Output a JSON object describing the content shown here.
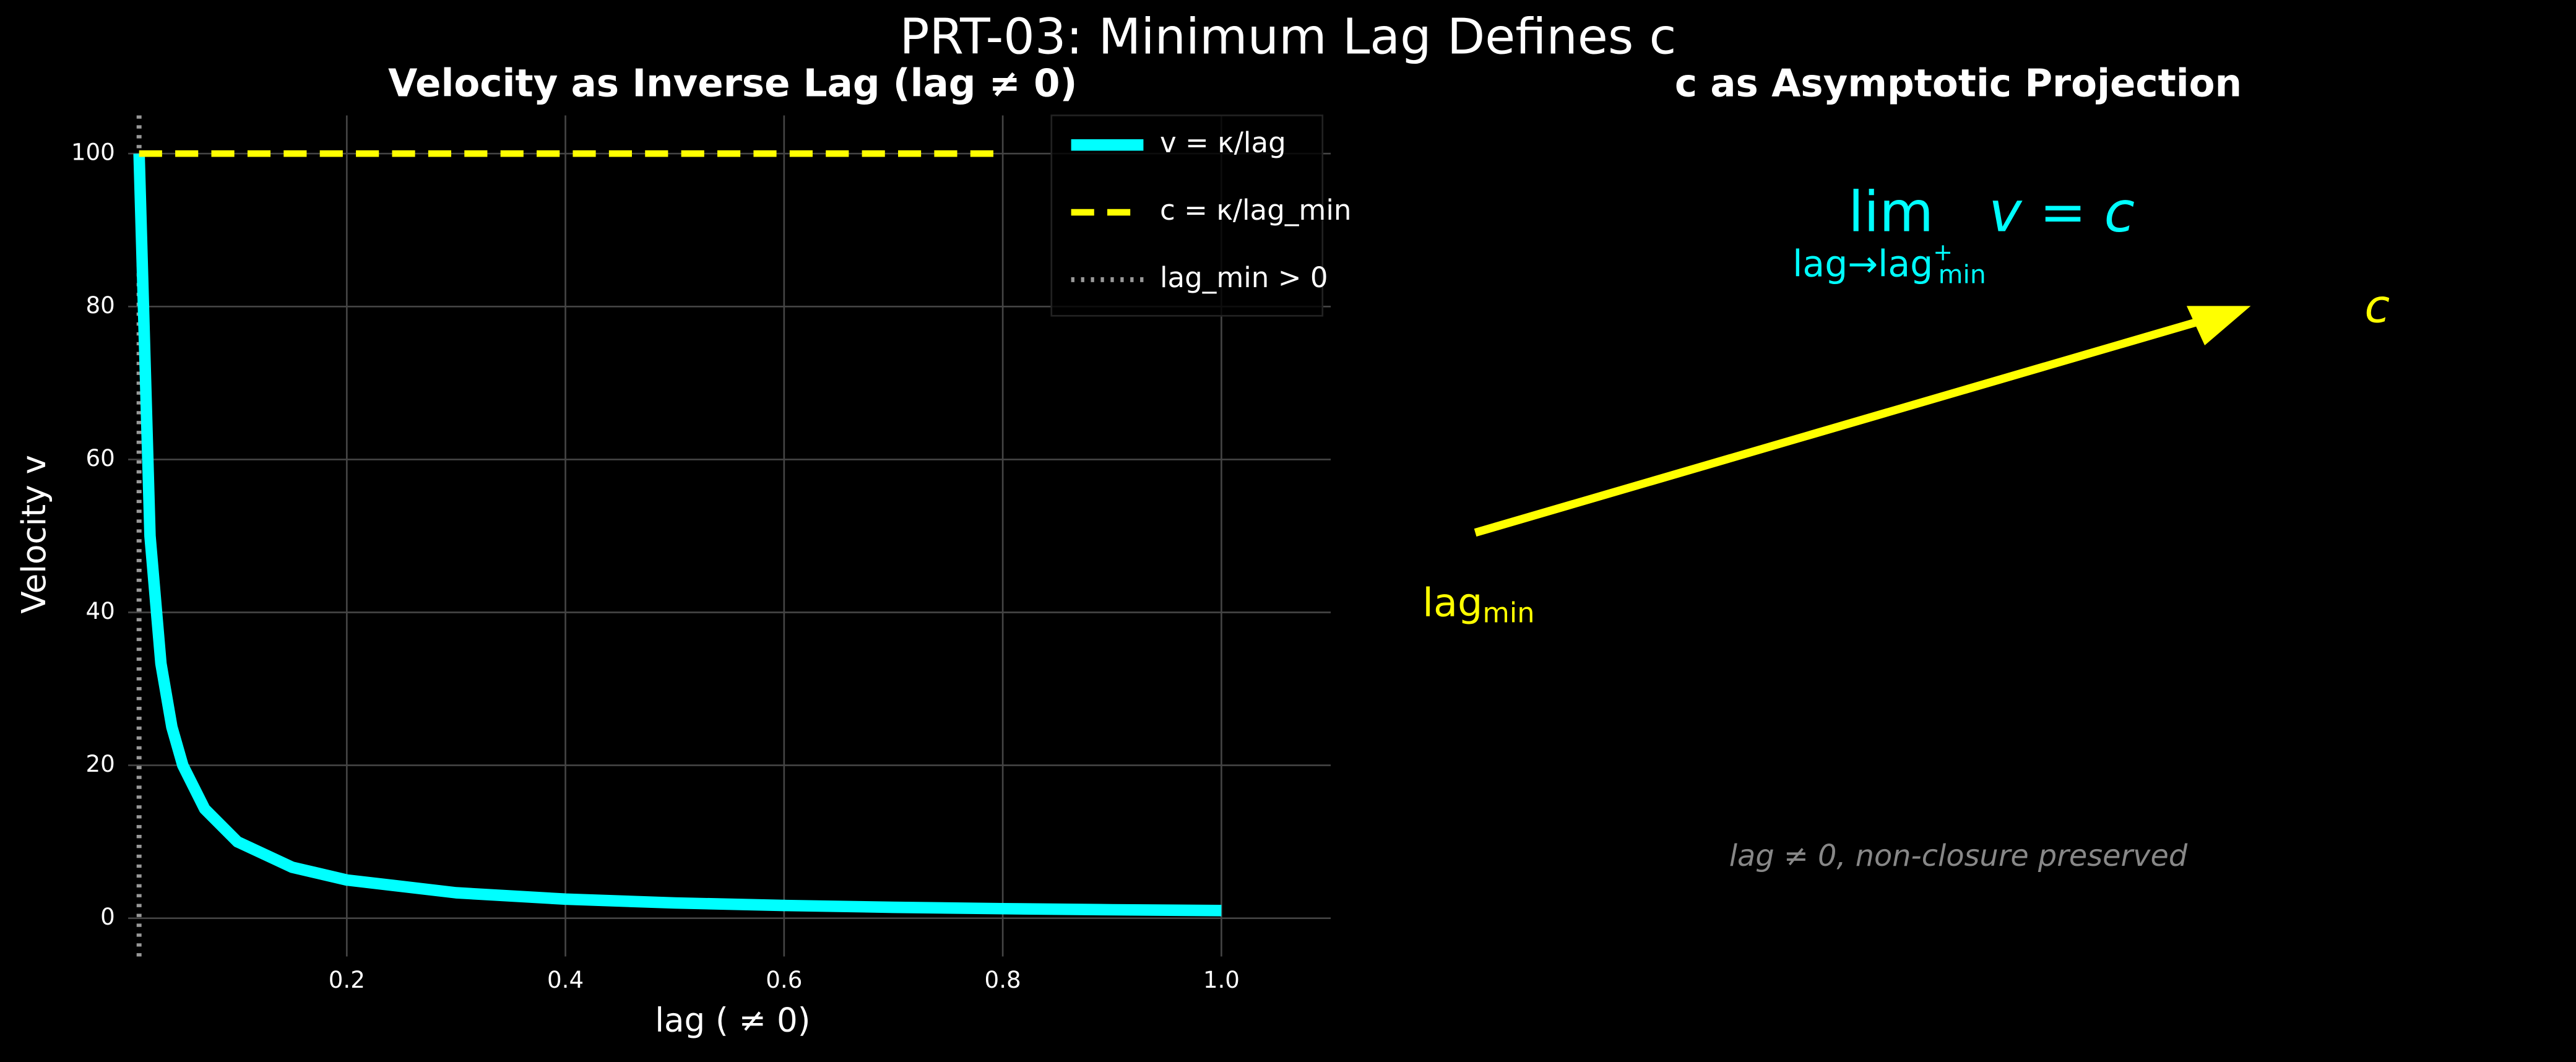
{
  "title": "PRT-03: Minimum Lag Defines c",
  "chart_data": [
    {
      "type": "line",
      "title": "Velocity as Inverse Lag (lag ≠ 0)",
      "x_label": "lag ( ≠ 0)",
      "y_label": "Velocity v",
      "xlim": [
        0,
        1.1
      ],
      "ylim": [
        -5,
        105
      ],
      "xticks": [
        0.2,
        0.4,
        0.6,
        0.8,
        {
          "value": 1,
          "label": "1.0"
        }
      ],
      "yticks": [
        0,
        20,
        40,
        60,
        80,
        100
      ],
      "grid": true,
      "legend": "upper right",
      "series": [
        {
          "name": "v = κ/lag",
          "color": "#00ffff",
          "style": "solid",
          "x": [
            0.01,
            0.02,
            0.03,
            0.04,
            0.05,
            0.07,
            0.1,
            0.15,
            0.2,
            0.3,
            0.4,
            0.5,
            0.6,
            0.7,
            0.8,
            0.9,
            1.0
          ],
          "values": [
            100,
            50,
            33.3,
            25,
            20,
            14.3,
            10,
            6.67,
            5,
            3.33,
            2.5,
            2,
            1.67,
            1.43,
            1.25,
            1.11,
            1
          ]
        },
        {
          "name": "c = κ/lag_min",
          "color": "#ffff00",
          "style": "dashed",
          "x": [
            0.01,
            0.8
          ],
          "values": [
            100,
            100
          ]
        }
      ],
      "vlines": [
        {
          "name": "lag_min > 0",
          "x": 0.01,
          "color": "#999999",
          "style": "dotted"
        }
      ]
    },
    {
      "type": "annotation",
      "title": "c as Asymptotic Projection",
      "annotations": [
        {
          "text": "lim",
          "color": "#00ffff"
        },
        {
          "text": "v = c",
          "color": "#00ffff"
        },
        {
          "text": "lag→lag",
          "sup": "+",
          "sub": "min",
          "color": "#00ffff"
        },
        {
          "text": "c",
          "color": "#ffff00"
        },
        {
          "text": "lag",
          "sub": "min",
          "color": "#ffff00"
        },
        {
          "text": "lag ≠ 0, non-closure preserved",
          "color": "#888888"
        }
      ]
    }
  ]
}
